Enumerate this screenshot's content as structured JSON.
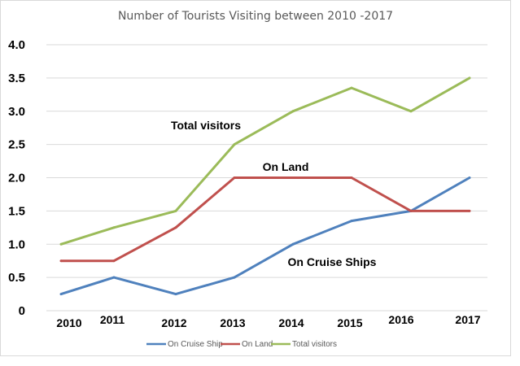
{
  "chart_data": {
    "type": "line",
    "title": "Number of Tourists Visiting between 2010 -2017",
    "xlabel": "",
    "ylabel": "",
    "categories": [
      "2010",
      "2011",
      "2012",
      "2013",
      "2014",
      "2015",
      "2016",
      "2017"
    ],
    "ylim": [
      0,
      4.0
    ],
    "yticks": [
      "0",
      "0.5",
      "1.0",
      "1.5",
      "2.0",
      "2.5",
      "3.0",
      "3.5",
      "4.0"
    ],
    "grid": true,
    "legend_position": "bottom",
    "series": [
      {
        "name": "On Cruise Ship",
        "color": "#4f81bd",
        "values": [
          0.25,
          0.5,
          0.25,
          0.5,
          1.0,
          1.35,
          1.5,
          2.0
        ]
      },
      {
        "name": "On Land",
        "color": "#c0504d",
        "values": [
          0.75,
          0.75,
          1.25,
          2.0,
          2.0,
          2.0,
          1.5,
          1.5
        ]
      },
      {
        "name": "Total visitors",
        "color": "#9bbb59",
        "values": [
          1.0,
          1.25,
          1.5,
          2.5,
          3.0,
          3.35,
          3.0,
          3.5
        ]
      }
    ],
    "annotations": [
      "Total visitors",
      "On Land",
      "On Cruise Ships"
    ]
  }
}
